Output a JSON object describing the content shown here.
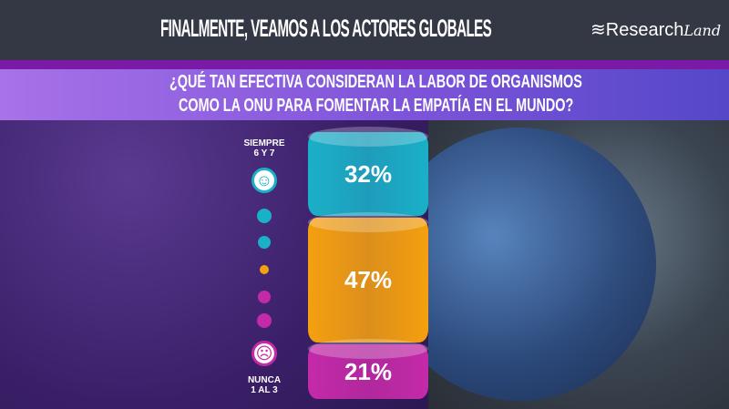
{
  "header": {
    "title": "FINALMENTE, VEAMOS A LOS ACTORES GLOBALES",
    "logo": "ResearchLand"
  },
  "question": {
    "line1": "¿QUÉ TAN EFECTIVA CONSIDERAN LA LABOR DE ORGANISMOS",
    "line2": "COMO LA ONU PARA FOMENTAR LA EMPATÍA EN EL MUNDO?"
  },
  "scale": {
    "top_label_1": "SIEMPRE",
    "top_label_2": "6 Y 7",
    "bottom_label_1": "NUNCA",
    "bottom_label_2": "1 AL 3",
    "top_icon": "smiley-icon",
    "bottom_icon": "sad-face-icon"
  },
  "chart_data": {
    "type": "bar",
    "stacked": true,
    "categories": [
      "SIEMPRE 6 Y 7",
      "",
      "NUNCA 1 AL 3"
    ],
    "values": [
      32,
      47,
      21
    ],
    "labels": [
      "32%",
      "47%",
      "21%"
    ],
    "colors": [
      "#1ab0c8",
      "#f5a010",
      "#c42aa8"
    ]
  }
}
